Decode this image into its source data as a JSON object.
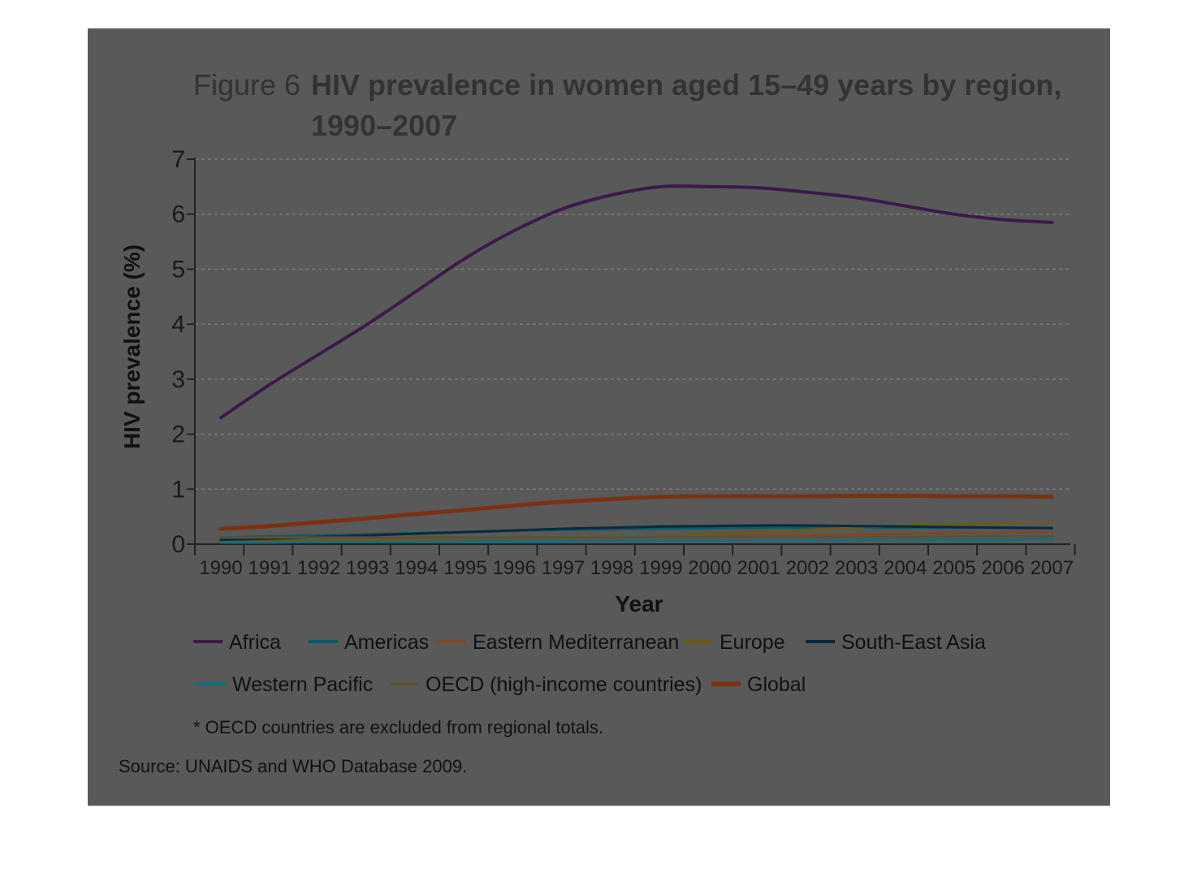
{
  "figure": {
    "label": "Figure 6",
    "title_line1": "HIV prevalence in women aged 15–49 years by region,",
    "title_line2": "1990–2007"
  },
  "chart_data": {
    "type": "line",
    "title": "HIV prevalence in women aged 15–49 years by region, 1990–2007",
    "xlabel": "Year",
    "ylabel": "HIV prevalence (%)",
    "ylim": [
      0,
      7
    ],
    "yticks": [
      0,
      1,
      2,
      3,
      4,
      5,
      6,
      7
    ],
    "grid": "horizontal dashed",
    "legend_position": "bottom",
    "x": [
      "1990",
      "1991",
      "1992",
      "1993",
      "1994",
      "1995",
      "1996",
      "1997",
      "1998",
      "1999",
      "2000",
      "2001",
      "2002",
      "2003",
      "2004",
      "2005",
      "2006",
      "2007"
    ],
    "series": [
      {
        "name": "Africa",
        "color": "#3b1a4a",
        "values": [
          2.3,
          2.9,
          3.45,
          4.0,
          4.6,
          5.2,
          5.7,
          6.1,
          6.35,
          6.5,
          6.5,
          6.48,
          6.4,
          6.3,
          6.15,
          6.0,
          5.9,
          5.85
        ]
      },
      {
        "name": "Americas",
        "color": "#0d5a66",
        "values": [
          0.12,
          0.14,
          0.16,
          0.18,
          0.2,
          0.22,
          0.24,
          0.26,
          0.27,
          0.28,
          0.29,
          0.3,
          0.3,
          0.3,
          0.3,
          0.3,
          0.3,
          0.3
        ]
      },
      {
        "name": "Eastern Mediterranean",
        "color": "#7a4a2a",
        "values": [
          0.05,
          0.06,
          0.07,
          0.08,
          0.09,
          0.1,
          0.11,
          0.12,
          0.13,
          0.14,
          0.15,
          0.16,
          0.17,
          0.18,
          0.19,
          0.2,
          0.21,
          0.22
        ]
      },
      {
        "name": "Europe",
        "color": "#6b5a1a",
        "values": [
          0.05,
          0.05,
          0.06,
          0.06,
          0.07,
          0.08,
          0.09,
          0.1,
          0.12,
          0.15,
          0.18,
          0.22,
          0.26,
          0.3,
          0.34,
          0.36,
          0.38,
          0.4
        ]
      },
      {
        "name": "South-East Asia",
        "color": "#0b2a3e",
        "values": [
          0.08,
          0.1,
          0.13,
          0.16,
          0.19,
          0.22,
          0.25,
          0.28,
          0.3,
          0.32,
          0.33,
          0.34,
          0.34,
          0.33,
          0.32,
          0.31,
          0.3,
          0.29
        ]
      },
      {
        "name": "Western Pacific",
        "color": "#1a6a80",
        "values": [
          0.03,
          0.03,
          0.04,
          0.04,
          0.04,
          0.05,
          0.05,
          0.05,
          0.06,
          0.06,
          0.06,
          0.07,
          0.07,
          0.07,
          0.08,
          0.08,
          0.08,
          0.09
        ]
      },
      {
        "name": "OECD (high-income countries)",
        "color": "#5a5236",
        "values": [
          0.12,
          0.12,
          0.12,
          0.12,
          0.12,
          0.12,
          0.12,
          0.12,
          0.12,
          0.13,
          0.13,
          0.13,
          0.13,
          0.13,
          0.13,
          0.14,
          0.14,
          0.14
        ]
      },
      {
        "name": "Global",
        "color": "#7a3212",
        "values": [
          0.28,
          0.33,
          0.4,
          0.47,
          0.55,
          0.62,
          0.7,
          0.77,
          0.82,
          0.86,
          0.87,
          0.87,
          0.87,
          0.88,
          0.88,
          0.87,
          0.87,
          0.86
        ]
      }
    ]
  },
  "legend_rows": [
    [
      "Africa",
      "Americas",
      "Eastern Mediterranean",
      "Europe",
      "South-East Asia"
    ],
    [
      "Western Pacific",
      "OECD (high-income countries)",
      "Global"
    ]
  ],
  "footnote": "* OECD countries are excluded from regional totals.",
  "source": "Source: UNAIDS and WHO Database 2009."
}
